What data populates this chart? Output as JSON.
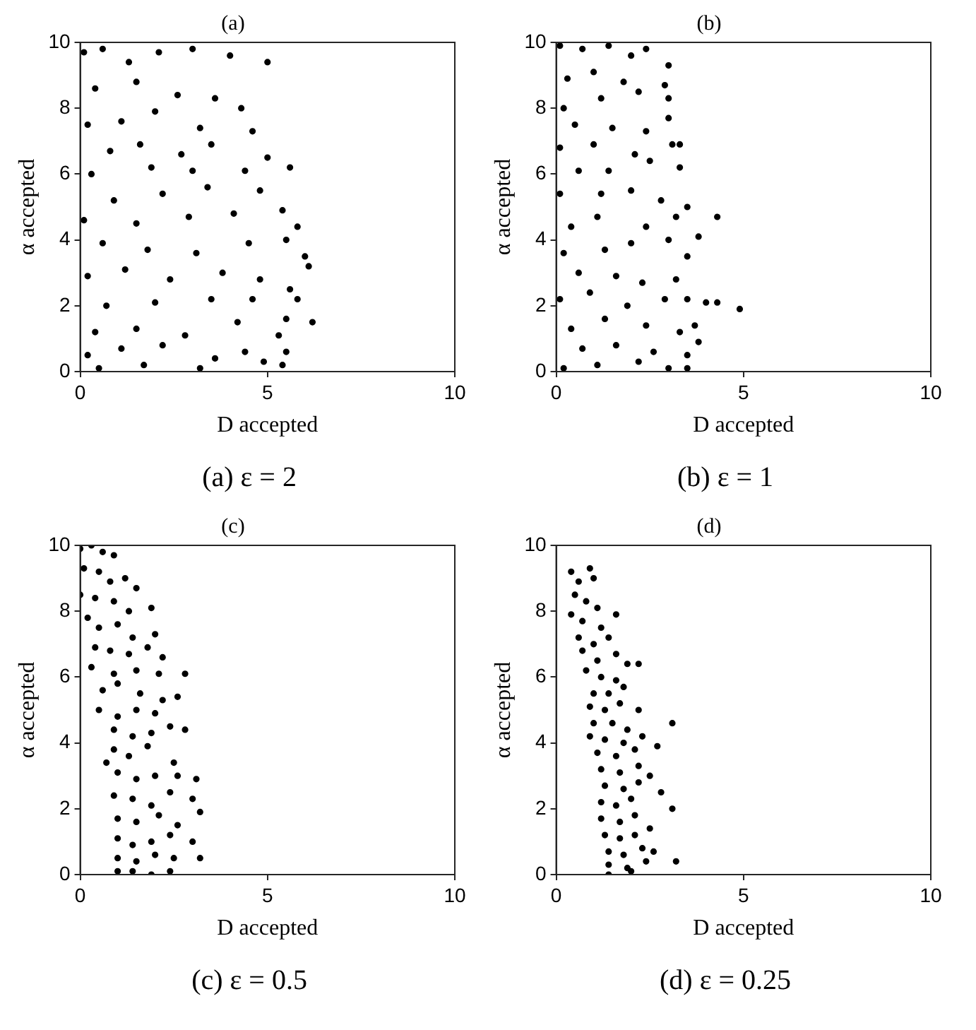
{
  "chart_data": [
    {
      "type": "scatter",
      "title": "(a)",
      "xlabel": "D accepted",
      "ylabel": "α accepted",
      "annotations": [
        "(a) ε = 2"
      ],
      "xlim": [
        0,
        10
      ],
      "xticks": [
        0,
        5,
        10
      ],
      "ylim": [
        0,
        10
      ],
      "yticks": [
        0,
        2,
        4,
        6,
        8,
        10
      ],
      "grid": false,
      "legend": false,
      "marker": "circle",
      "x": [
        0.1,
        0.6,
        1.3,
        2.1,
        3.0,
        4.0,
        5.0,
        0.4,
        1.5,
        2.6,
        3.6,
        4.3,
        0.2,
        1.1,
        2.0,
        3.2,
        4.6,
        0.8,
        1.6,
        2.7,
        3.5,
        5.0,
        5.6,
        0.3,
        1.9,
        3.0,
        4.4,
        0.9,
        2.2,
        3.4,
        4.8,
        0.1,
        1.5,
        2.9,
        4.1,
        5.4,
        5.8,
        0.6,
        1.8,
        3.1,
        4.5,
        5.5,
        6.0,
        0.2,
        1.2,
        2.4,
        3.8,
        4.8,
        6.1,
        5.6,
        0.7,
        2.0,
        3.5,
        4.6,
        5.8,
        6.2,
        0.4,
        1.5,
        2.8,
        4.2,
        5.3,
        5.5,
        0.2,
        1.1,
        2.2,
        3.6,
        4.4,
        5.5,
        0.5,
        1.7,
        3.2,
        4.9,
        5.4
      ],
      "series": [
        {
          "color": "#000000",
          "values": [
            9.7,
            9.8,
            9.4,
            9.7,
            9.8,
            9.6,
            9.4,
            8.6,
            8.8,
            8.4,
            8.3,
            8.0,
            7.5,
            7.6,
            7.9,
            7.4,
            7.3,
            6.7,
            6.9,
            6.6,
            6.9,
            6.5,
            6.2,
            6.0,
            6.2,
            6.1,
            6.1,
            5.2,
            5.4,
            5.6,
            5.5,
            4.6,
            4.5,
            4.7,
            4.8,
            4.9,
            4.4,
            3.9,
            3.7,
            3.6,
            3.9,
            4.0,
            3.5,
            2.9,
            3.1,
            2.8,
            3.0,
            2.8,
            3.2,
            2.5,
            2.0,
            2.1,
            2.2,
            2.2,
            2.2,
            1.5,
            1.2,
            1.3,
            1.1,
            1.5,
            1.1,
            1.6,
            0.5,
            0.7,
            0.8,
            0.4,
            0.6,
            0.6,
            0.1,
            0.2,
            0.1,
            0.3,
            0.2
          ]
        }
      ]
    },
    {
      "type": "scatter",
      "title": "(b)",
      "xlabel": "D accepted",
      "ylabel": "α accepted",
      "annotations": [
        "(b) ε = 1"
      ],
      "xlim": [
        0,
        10
      ],
      "xticks": [
        0,
        5,
        10
      ],
      "ylim": [
        0,
        10
      ],
      "yticks": [
        0,
        2,
        4,
        6,
        8,
        10
      ],
      "grid": false,
      "legend": false,
      "marker": "circle",
      "x": [
        0.1,
        0.7,
        1.4,
        2.0,
        2.4,
        3.0,
        0.3,
        1.0,
        1.8,
        2.9,
        0.2,
        1.2,
        2.2,
        3.0,
        0.5,
        1.5,
        2.4,
        3.0,
        0.1,
        1.0,
        2.1,
        3.1,
        3.3,
        0.6,
        1.4,
        2.5,
        3.3,
        0.1,
        1.2,
        2.0,
        2.8,
        3.5,
        0.4,
        1.1,
        2.4,
        3.2,
        4.3,
        0.2,
        1.3,
        2.0,
        3.0,
        3.8,
        0.6,
        1.6,
        2.3,
        3.2,
        3.5,
        0.1,
        0.9,
        1.9,
        2.9,
        3.5,
        4.0,
        4.3,
        4.9,
        0.4,
        1.3,
        2.4,
        3.3,
        3.7,
        0.7,
        1.6,
        2.6,
        3.5,
        3.8,
        0.2,
        1.1,
        2.2,
        3.0,
        3.5
      ],
      "series": [
        {
          "color": "#000000",
          "values": [
            9.9,
            9.8,
            9.9,
            9.6,
            9.8,
            9.3,
            8.9,
            9.1,
            8.8,
            8.7,
            8.0,
            8.3,
            8.5,
            8.3,
            7.5,
            7.4,
            7.3,
            7.7,
            6.8,
            6.9,
            6.6,
            6.9,
            6.9,
            6.1,
            6.1,
            6.4,
            6.2,
            5.4,
            5.4,
            5.5,
            5.2,
            5.0,
            4.4,
            4.7,
            4.4,
            4.7,
            4.7,
            3.6,
            3.7,
            3.9,
            4.0,
            4.1,
            3.0,
            2.9,
            2.7,
            2.8,
            3.5,
            2.2,
            2.4,
            2.0,
            2.2,
            2.2,
            2.1,
            2.1,
            1.9,
            1.3,
            1.6,
            1.4,
            1.2,
            1.4,
            0.7,
            0.8,
            0.6,
            0.5,
            0.9,
            0.1,
            0.2,
            0.3,
            0.1,
            0.1
          ]
        }
      ]
    },
    {
      "type": "scatter",
      "title": "(c)",
      "xlabel": "D accepted",
      "ylabel": "α accepted",
      "annotations": [
        "(c) ε = 0.5"
      ],
      "xlim": [
        0,
        10
      ],
      "xticks": [
        0,
        5,
        10
      ],
      "ylim": [
        0,
        10
      ],
      "yticks": [
        0,
        2,
        4,
        6,
        8,
        10
      ],
      "grid": false,
      "legend": false,
      "marker": "circle",
      "x": [
        0.0,
        0.3,
        0.6,
        0.9,
        0.1,
        0.5,
        0.8,
        1.2,
        1.5,
        0.0,
        0.4,
        0.9,
        1.3,
        1.9,
        0.2,
        0.5,
        1.0,
        1.4,
        2.0,
        0.4,
        0.8,
        1.3,
        1.8,
        2.2,
        0.3,
        0.9,
        1.5,
        2.1,
        2.8,
        0.6,
        1.0,
        1.6,
        2.2,
        2.6,
        0.5,
        1.0,
        1.5,
        2.0,
        2.8,
        0.9,
        1.4,
        1.9,
        2.4,
        0.9,
        1.3,
        1.8,
        2.5,
        0.7,
        1.0,
        1.5,
        2.0,
        2.6,
        3.1,
        0.9,
        1.4,
        1.9,
        2.4,
        3.0,
        1.0,
        1.5,
        2.1,
        2.6,
        3.2,
        1.0,
        1.4,
        1.9,
        2.4,
        3.0,
        1.0,
        1.5,
        2.0,
        2.5,
        3.2,
        1.0,
        1.4,
        1.9,
        2.4
      ],
      "series": [
        {
          "color": "#000000",
          "values": [
            9.9,
            10.0,
            9.8,
            9.7,
            9.3,
            9.2,
            8.9,
            9.0,
            8.7,
            8.5,
            8.4,
            8.3,
            8.0,
            8.1,
            7.8,
            7.5,
            7.6,
            7.2,
            7.3,
            6.9,
            6.8,
            6.7,
            6.9,
            6.6,
            6.3,
            6.1,
            6.2,
            6.1,
            6.1,
            5.6,
            5.8,
            5.5,
            5.3,
            5.4,
            5.0,
            4.8,
            5.0,
            4.9,
            4.4,
            4.4,
            4.2,
            4.3,
            4.5,
            3.8,
            3.6,
            3.9,
            3.4,
            3.4,
            3.1,
            2.9,
            3.0,
            3.0,
            2.9,
            2.4,
            2.3,
            2.1,
            2.5,
            2.3,
            1.7,
            1.6,
            1.8,
            1.5,
            1.9,
            1.1,
            0.9,
            1.0,
            1.2,
            1.0,
            0.5,
            0.4,
            0.6,
            0.5,
            0.5,
            0.1,
            0.1,
            0.0,
            0.1
          ]
        }
      ]
    },
    {
      "type": "scatter",
      "title": "(d)",
      "xlabel": "D accepted",
      "ylabel": "α accepted",
      "annotations": [
        "(d) ε = 0.25"
      ],
      "xlim": [
        0,
        10
      ],
      "xticks": [
        0,
        5,
        10
      ],
      "ylim": [
        0,
        10
      ],
      "yticks": [
        0,
        2,
        4,
        6,
        8,
        10
      ],
      "grid": false,
      "legend": false,
      "marker": "circle",
      "x": [
        0.4,
        0.9,
        0.6,
        1.0,
        0.5,
        0.8,
        1.1,
        0.4,
        0.7,
        1.2,
        1.6,
        0.6,
        1.0,
        1.4,
        0.7,
        1.1,
        1.6,
        2.2,
        1.9,
        0.8,
        1.2,
        1.6,
        1.0,
        1.4,
        1.8,
        0.9,
        1.3,
        1.7,
        2.2,
        1.0,
        1.5,
        1.9,
        3.1,
        0.9,
        1.3,
        1.8,
        2.3,
        1.1,
        1.6,
        2.1,
        2.7,
        1.2,
        1.7,
        2.2,
        2.5,
        1.3,
        1.8,
        2.2,
        2.8,
        1.2,
        1.6,
        2.0,
        3.1,
        1.2,
        1.7,
        2.1,
        2.5,
        1.3,
        1.7,
        2.1,
        1.4,
        1.8,
        2.3,
        2.6,
        1.4,
        1.9,
        2.4,
        3.2,
        1.4,
        2.0
      ],
      "series": [
        {
          "color": "#000000",
          "values": [
            9.2,
            9.3,
            8.9,
            9.0,
            8.5,
            8.3,
            8.1,
            7.9,
            7.7,
            7.5,
            7.9,
            7.2,
            7.0,
            7.2,
            6.8,
            6.5,
            6.7,
            6.4,
            6.4,
            6.2,
            6.0,
            5.9,
            5.5,
            5.5,
            5.7,
            5.1,
            5.0,
            5.2,
            5.0,
            4.6,
            4.6,
            4.4,
            4.6,
            4.2,
            4.1,
            4.0,
            4.2,
            3.7,
            3.6,
            3.8,
            3.9,
            3.2,
            3.1,
            3.3,
            3.0,
            2.7,
            2.6,
            2.8,
            2.5,
            2.2,
            2.1,
            2.3,
            2.0,
            1.7,
            1.6,
            1.8,
            1.4,
            1.2,
            1.1,
            1.2,
            0.7,
            0.6,
            0.8,
            0.7,
            0.3,
            0.2,
            0.4,
            0.4,
            0.0,
            0.1
          ]
        }
      ]
    }
  ]
}
